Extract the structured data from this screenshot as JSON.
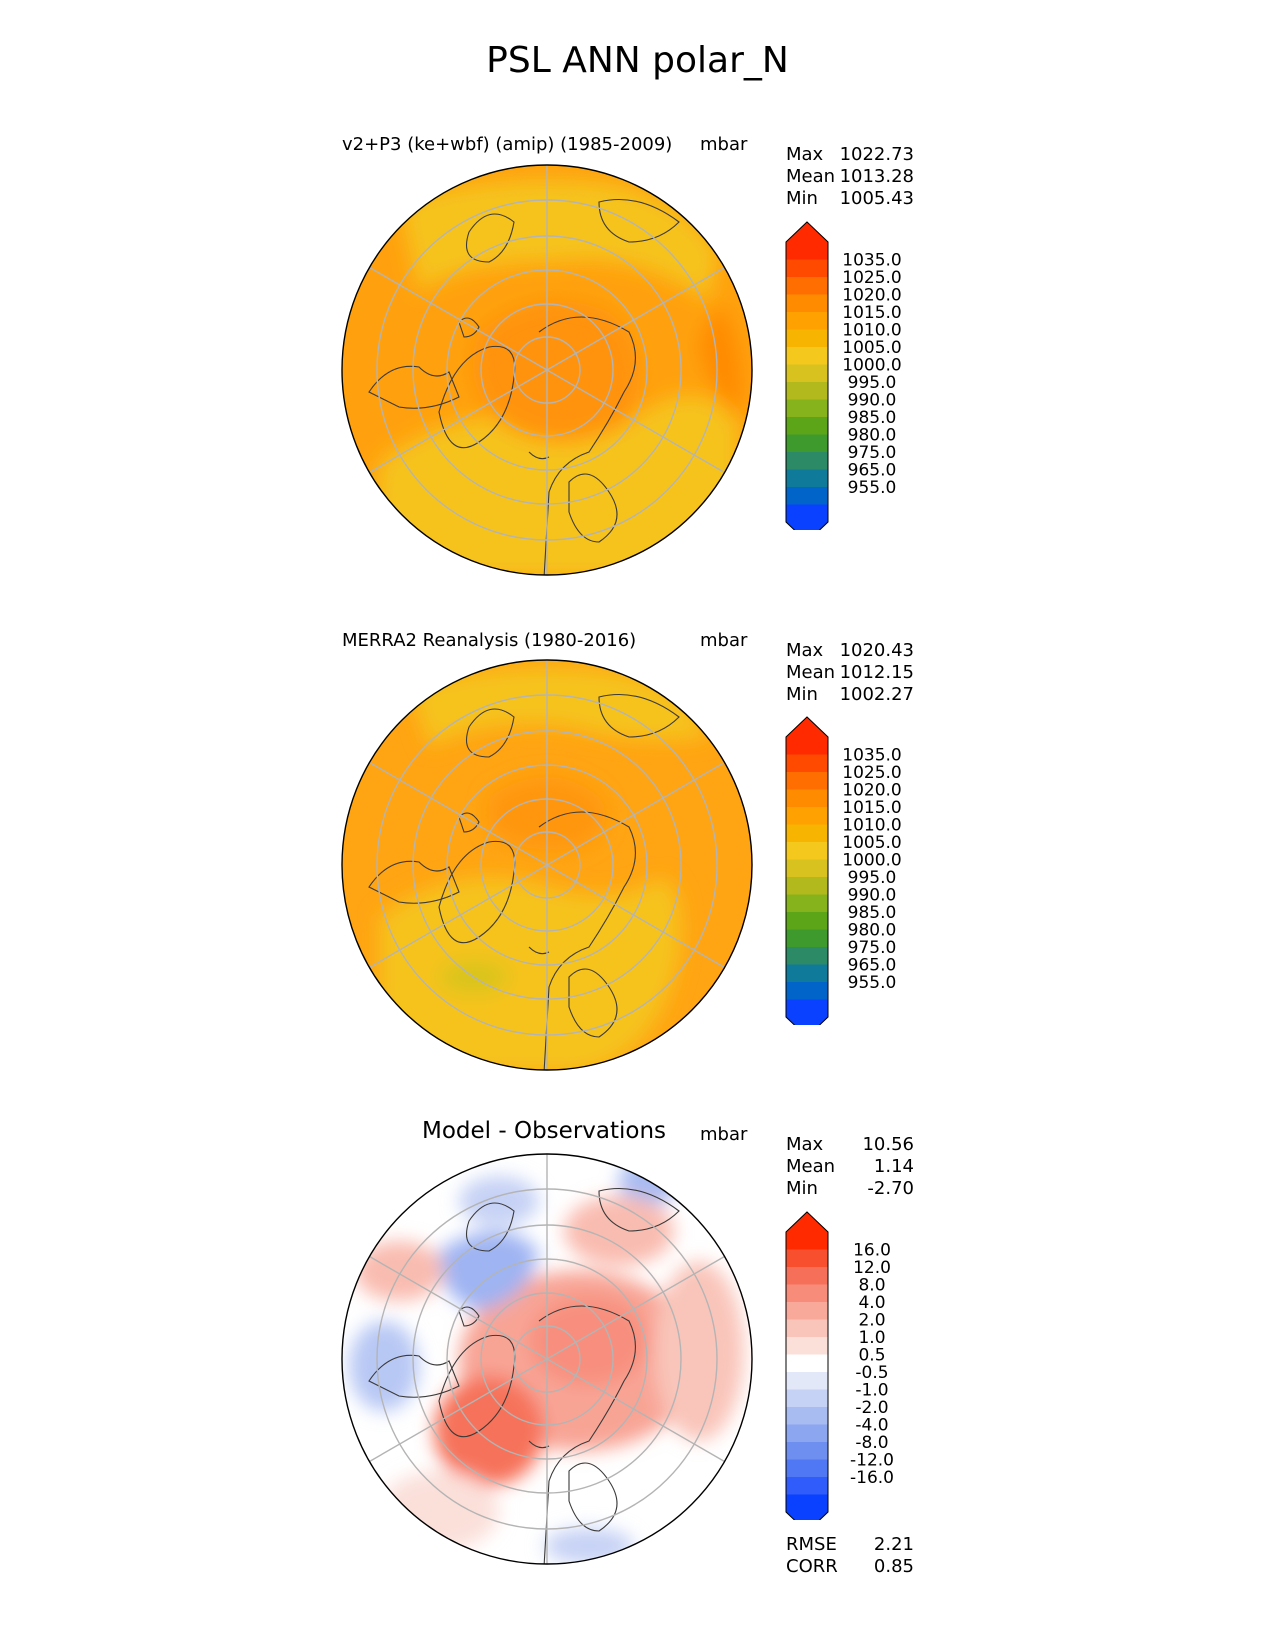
{
  "figure_title": "PSL ANN polar_N",
  "panels": [
    {
      "title": "v2+P3 (ke+wbf) (amip) (1985-2009)",
      "units": "mbar",
      "stats": [
        {
          "label": "Max",
          "value": "1022.73"
        },
        {
          "label": "Mean",
          "value": "1013.28"
        },
        {
          "label": "Min",
          "value": "1005.43"
        }
      ]
    },
    {
      "title": "MERRA2 Reanalysis (1980-2016)",
      "units": "mbar",
      "stats": [
        {
          "label": "Max",
          "value": "1020.43"
        },
        {
          "label": "Mean",
          "value": "1012.15"
        },
        {
          "label": "Min",
          "value": "1002.27"
        }
      ]
    },
    {
      "title": "Model - Observations",
      "units": "mbar",
      "stats": [
        {
          "label": "Max",
          "value": "10.56"
        },
        {
          "label": "Mean",
          "value": "1.14"
        },
        {
          "label": "Min",
          "value": "-2.70"
        }
      ],
      "metrics": [
        {
          "label": "RMSE",
          "value": "2.21"
        },
        {
          "label": "CORR",
          "value": "0.85"
        }
      ]
    }
  ],
  "colorbars": {
    "absolute": {
      "ticks": [
        "1035.0",
        "1025.0",
        "1020.0",
        "1015.0",
        "1010.0",
        "1005.0",
        "1000.0",
        "995.0",
        "990.0",
        "985.0",
        "980.0",
        "975.0",
        "965.0",
        "955.0"
      ],
      "colors": [
        "#ff2a00",
        "#ff4a00",
        "#ff6e00",
        "#ff8c00",
        "#ffa100",
        "#f7b400",
        "#f4c81c",
        "#d7c21f",
        "#b1b91d",
        "#86b21b",
        "#5da518",
        "#3e9a2c",
        "#2c8a66",
        "#0f7a9a",
        "#0064c8",
        "#0a40ff"
      ],
      "over_color": "#ff2a00",
      "under_color": "#0a40ff"
    },
    "difference": {
      "ticks": [
        "16.0",
        "12.0",
        "8.0",
        "4.0",
        "2.0",
        "1.0",
        "0.5",
        "-0.5",
        "-1.0",
        "-2.0",
        "-4.0",
        "-8.0",
        "-12.0",
        "-16.0"
      ],
      "colors": [
        "#ff2a00",
        "#f8502e",
        "#f66f59",
        "#f88c7a",
        "#f8a99a",
        "#f9c5ba",
        "#fbe0da",
        "#ffffff",
        "#e2e8f8",
        "#c6d2f5",
        "#a9bcf2",
        "#8ca6f0",
        "#6e8ff0",
        "#5078f5",
        "#2f5cfa",
        "#0a40ff"
      ],
      "over_color": "#ff2a00",
      "under_color": "#0a40ff"
    }
  }
}
